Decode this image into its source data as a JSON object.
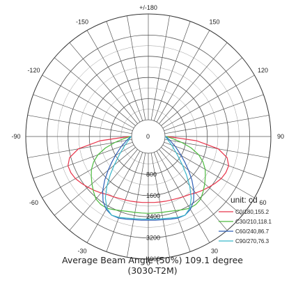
{
  "chart_data": {
    "type": "polar",
    "angle_labels": [
      {
        "angle": 180,
        "text": "+/-180"
      },
      {
        "angle": 150,
        "text": "150"
      },
      {
        "angle": -150,
        "text": "-150"
      },
      {
        "angle": 120,
        "text": "120"
      },
      {
        "angle": -120,
        "text": "-120"
      },
      {
        "angle": 90,
        "text": "90"
      },
      {
        "angle": -90,
        "text": "-90"
      },
      {
        "angle": 60,
        "text": "60"
      },
      {
        "angle": -60,
        "text": "-60"
      },
      {
        "angle": 30,
        "text": "30"
      },
      {
        "angle": -30,
        "text": "-30"
      },
      {
        "angle": 0,
        "text": "0"
      }
    ],
    "radial_ticks": [
      0,
      800,
      1600,
      2400,
      3200,
      4000
    ],
    "radial_tick_labels": [
      "0",
      "800",
      "1600",
      "2400",
      "3200",
      "4000"
    ],
    "rmax": 4000,
    "unit_label": "unit: cd",
    "series": [
      {
        "name": "C0/180,155.2",
        "color": "#e8344a",
        "angles": [
          -90,
          -85,
          -80,
          -75,
          -70,
          -65,
          -60,
          -55,
          -50,
          -45,
          -40,
          -35,
          -30,
          -25,
          -20,
          -15,
          -10,
          -5,
          0,
          5,
          10,
          15,
          20,
          25,
          30,
          35,
          40,
          45,
          50,
          55,
          60,
          65,
          70,
          75,
          80,
          85,
          90
        ],
        "values": [
          100,
          1200,
          2050,
          2450,
          2600,
          2600,
          2550,
          2450,
          2350,
          2250,
          2150,
          2050,
          2000,
          1950,
          1920,
          1900,
          1880,
          1870,
          1860,
          1870,
          1880,
          1900,
          1920,
          1950,
          2000,
          2050,
          2150,
          2250,
          2350,
          2450,
          2550,
          2600,
          2600,
          2450,
          2050,
          1200,
          100
        ]
      },
      {
        "name": "C30/210,118.1",
        "color": "#4dbb3f",
        "angles": [
          -90,
          -85,
          -80,
          -75,
          -70,
          -65,
          -60,
          -55,
          -50,
          -45,
          -40,
          -35,
          -30,
          -25,
          -20,
          -15,
          -10,
          -5,
          0,
          5,
          10,
          15,
          20,
          25,
          30,
          35,
          40,
          45,
          50,
          55,
          60,
          65,
          70,
          75,
          80,
          85,
          90
        ],
        "values": [
          50,
          300,
          650,
          1050,
          1400,
          1650,
          1850,
          2000,
          2150,
          2300,
          2450,
          2500,
          2500,
          2420,
          2350,
          2300,
          2280,
          2270,
          2270,
          2270,
          2280,
          2300,
          2350,
          2420,
          2500,
          2500,
          2450,
          2300,
          2150,
          2000,
          1850,
          1650,
          1400,
          1050,
          650,
          300,
          50
        ]
      },
      {
        "name": "C60/240,86.7",
        "color": "#2f5fb6",
        "angles": [
          -90,
          -85,
          -80,
          -75,
          -70,
          -65,
          -60,
          -55,
          -50,
          -45,
          -40,
          -35,
          -30,
          -25,
          -20,
          -15,
          -10,
          -5,
          0,
          5,
          10,
          15,
          20,
          25,
          30,
          35,
          40,
          45,
          50,
          55,
          60,
          65,
          70,
          75,
          80,
          85,
          90
        ],
        "values": [
          30,
          100,
          200,
          300,
          450,
          600,
          800,
          1050,
          1350,
          1700,
          2050,
          2350,
          2550,
          2650,
          2650,
          2600,
          2560,
          2540,
          2530,
          2540,
          2560,
          2600,
          2650,
          2650,
          2550,
          2350,
          2050,
          1700,
          1350,
          1050,
          800,
          600,
          450,
          300,
          200,
          100,
          30
        ]
      },
      {
        "name": "C90/270,76.3",
        "color": "#38b6c9",
        "angles": [
          -90,
          -85,
          -80,
          -75,
          -70,
          -65,
          -60,
          -55,
          -50,
          -45,
          -40,
          -35,
          -30,
          -25,
          -20,
          -15,
          -10,
          -5,
          0,
          5,
          10,
          15,
          20,
          25,
          30,
          35,
          40,
          45,
          50,
          55,
          60,
          65,
          70,
          75,
          80,
          85,
          90
        ],
        "values": [
          20,
          60,
          120,
          200,
          300,
          420,
          580,
          780,
          1050,
          1400,
          1800,
          2200,
          2500,
          2650,
          2620,
          2560,
          2520,
          2500,
          2490,
          2500,
          2520,
          2560,
          2620,
          2650,
          2500,
          2200,
          1800,
          1400,
          1050,
          780,
          580,
          420,
          300,
          200,
          120,
          60,
          20
        ]
      }
    ],
    "caption_line1": "Average Beam Angle (50%) 109.1 degree",
    "caption_line2": "(3030-T2M)",
    "grid": true
  }
}
